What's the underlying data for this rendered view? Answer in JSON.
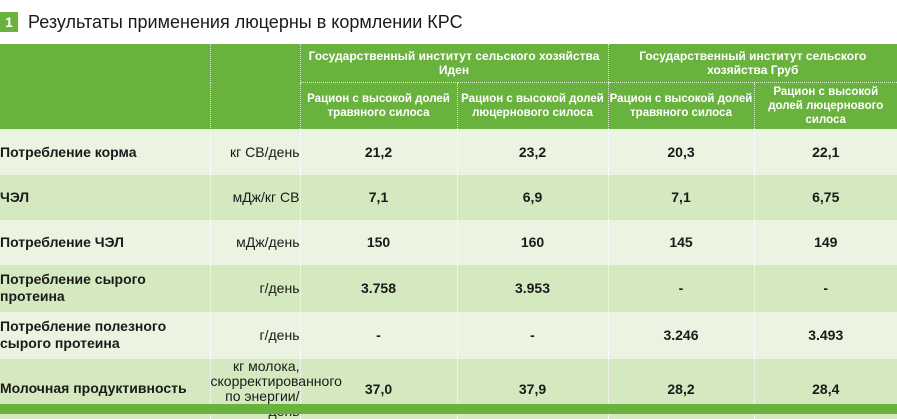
{
  "header": {
    "badge": "1",
    "title": "Результаты применения люцерны в кормлении КРС"
  },
  "columns": {
    "institutes": [
      "Государственный институт сельского хозяйства Иден",
      "Государственный институт сельского хозяйства Груб"
    ],
    "rations": [
      "Рацион с высокой долей травяного силоса",
      "Рацион с высокой долей люцернового силоса",
      "Рацион с высокой долей травяного силоса",
      "Рацион с высокой долей люцернового силоса"
    ]
  },
  "rows": [
    {
      "label": "Потребление корма",
      "unit": "кг СВ/день",
      "values": [
        "21,2",
        "23,2",
        "20,3",
        "22,1"
      ]
    },
    {
      "label": "ЧЭЛ",
      "unit": "мДж/кг СВ",
      "values": [
        "7,1",
        "6,9",
        "7,1",
        "6,75"
      ]
    },
    {
      "label": "Потребление ЧЭЛ",
      "unit": "мДж/день",
      "values": [
        "150",
        "160",
        "145",
        "149"
      ]
    },
    {
      "label": "Потребление сырого протеина",
      "unit": "г/день",
      "values": [
        "3.758",
        "3.953",
        "-",
        "-"
      ]
    },
    {
      "label": "Потребление полезного сырого протеина",
      "unit": "г/день",
      "values": [
        "-",
        "-",
        "3.246",
        "3.493"
      ]
    },
    {
      "label": "Молочная продуктивность",
      "unit": "кг молока, скорректированного по энергии/день",
      "values": [
        "37,0",
        "37,9",
        "28,2",
        "28,4"
      ]
    }
  ]
}
